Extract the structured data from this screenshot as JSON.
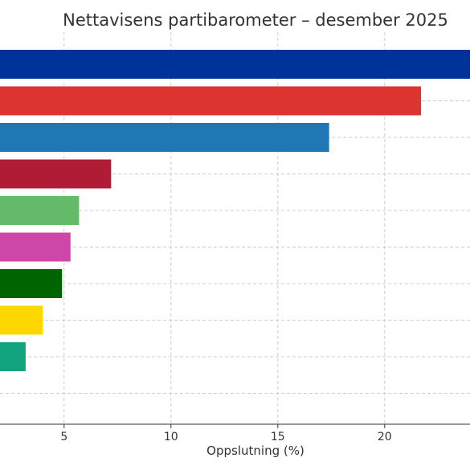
{
  "chart_data": {
    "type": "bar",
    "orientation": "horizontal",
    "title": "Nettavisens partibarometer – desember 2025",
    "xlabel": "Oppslutning (%)",
    "ylabel": "",
    "xlim": [
      2.0,
      24.6
    ],
    "x_ticks": [
      5,
      10,
      15,
      20
    ],
    "grid": true,
    "values": [
      24.6,
      21.7,
      17.4,
      7.2,
      5.7,
      5.3,
      4.9,
      4.0,
      3.2,
      0
    ],
    "colors": [
      "#003399",
      "#dc3431",
      "#1f77b4",
      "#b01c35",
      "#66bb6a",
      "#cc47a8",
      "#006400",
      "#ffd700",
      "#12a37f",
      "#ffffff"
    ]
  }
}
